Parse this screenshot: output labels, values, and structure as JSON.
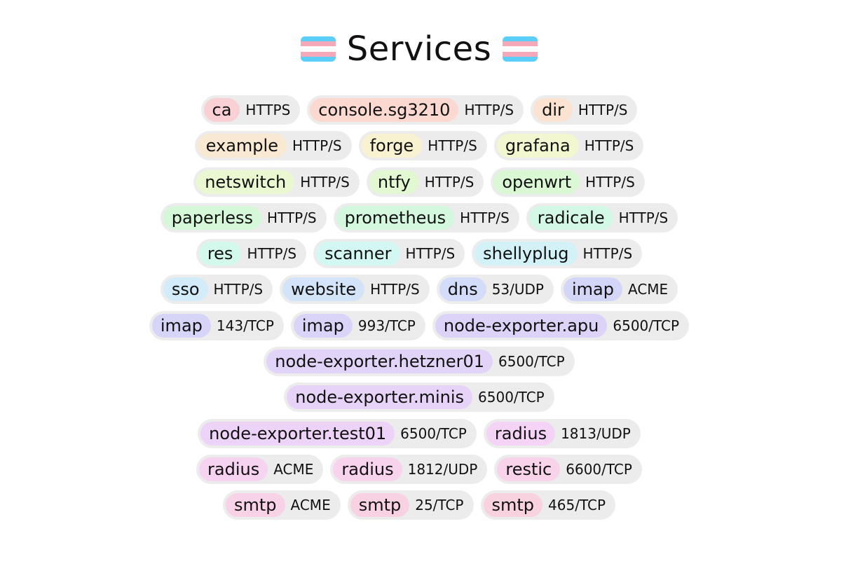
{
  "header": {
    "title": "Services",
    "flag_colors": [
      "#5BCEFA",
      "#F5A9B8",
      "#FFFFFF",
      "#F5A9B8",
      "#5BCEFA"
    ]
  },
  "services": [
    {
      "name": "ca",
      "port": "HTTPS",
      "color": "#f9d0d4"
    },
    {
      "name": "console.sg3210",
      "port": "HTTP/S",
      "color": "#fbd9d1"
    },
    {
      "name": "dir",
      "port": "HTTP/S",
      "color": "#fbe2d1"
    },
    {
      "name": "example",
      "port": "HTTP/S",
      "color": "#f9e8d2"
    },
    {
      "name": "forge",
      "port": "HTTP/S",
      "color": "#f8f2d0"
    },
    {
      "name": "grafana",
      "port": "HTTP/S",
      "color": "#f2f7d0"
    },
    {
      "name": "netswitch",
      "port": "HTTP/S",
      "color": "#eaf8d2"
    },
    {
      "name": "ntfy",
      "port": "HTTP/S",
      "color": "#e2f8d2"
    },
    {
      "name": "openwrt",
      "port": "HTTP/S",
      "color": "#daf8d4"
    },
    {
      "name": "paperless",
      "port": "HTTP/S",
      "color": "#d4f8d8"
    },
    {
      "name": "prometheus",
      "port": "HTTP/S",
      "color": "#d3f8de"
    },
    {
      "name": "radicale",
      "port": "HTTP/S",
      "color": "#d3f8e6"
    },
    {
      "name": "res",
      "port": "HTTP/S",
      "color": "#d3f8ec"
    },
    {
      "name": "scanner",
      "port": "HTTP/S",
      "color": "#d3f7f2"
    },
    {
      "name": "shellyplug",
      "port": "HTTP/S",
      "color": "#d3f2f8"
    },
    {
      "name": "sso",
      "port": "HTTP/S",
      "color": "#d3ecf9"
    },
    {
      "name": "website",
      "port": "HTTP/S",
      "color": "#d3e4f9"
    },
    {
      "name": "dns",
      "port": "53/UDP",
      "color": "#d3dcf9"
    },
    {
      "name": "imap",
      "port": "ACME",
      "color": "#d4d6f8"
    },
    {
      "name": "imap",
      "port": "143/TCP",
      "color": "#d6d5f8"
    },
    {
      "name": "imap",
      "port": "993/TCP",
      "color": "#d9d4f8"
    },
    {
      "name": "node-exporter.apu",
      "port": "6500/TCP",
      "color": "#ddd3f8"
    },
    {
      "name": "node-exporter.hetzner01",
      "port": "6500/TCP",
      "color": "#e2d3f8"
    },
    {
      "name": "node-exporter.minis",
      "port": "6500/TCP",
      "color": "#e8d3f8"
    },
    {
      "name": "node-exporter.test01",
      "port": "6500/TCP",
      "color": "#eed3f8"
    },
    {
      "name": "radius",
      "port": "1813/UDP",
      "color": "#f4d3f7"
    },
    {
      "name": "radius",
      "port": "ACME",
      "color": "#f7d3f2"
    },
    {
      "name": "radius",
      "port": "1812/UDP",
      "color": "#f7d3ee"
    },
    {
      "name": "restic",
      "port": "6600/TCP",
      "color": "#f8d3ea"
    },
    {
      "name": "smtp",
      "port": "ACME",
      "color": "#f8d2e6"
    },
    {
      "name": "smtp",
      "port": "25/TCP",
      "color": "#f8d2e2"
    },
    {
      "name": "smtp",
      "port": "465/TCP",
      "color": "#f8d2de"
    }
  ]
}
